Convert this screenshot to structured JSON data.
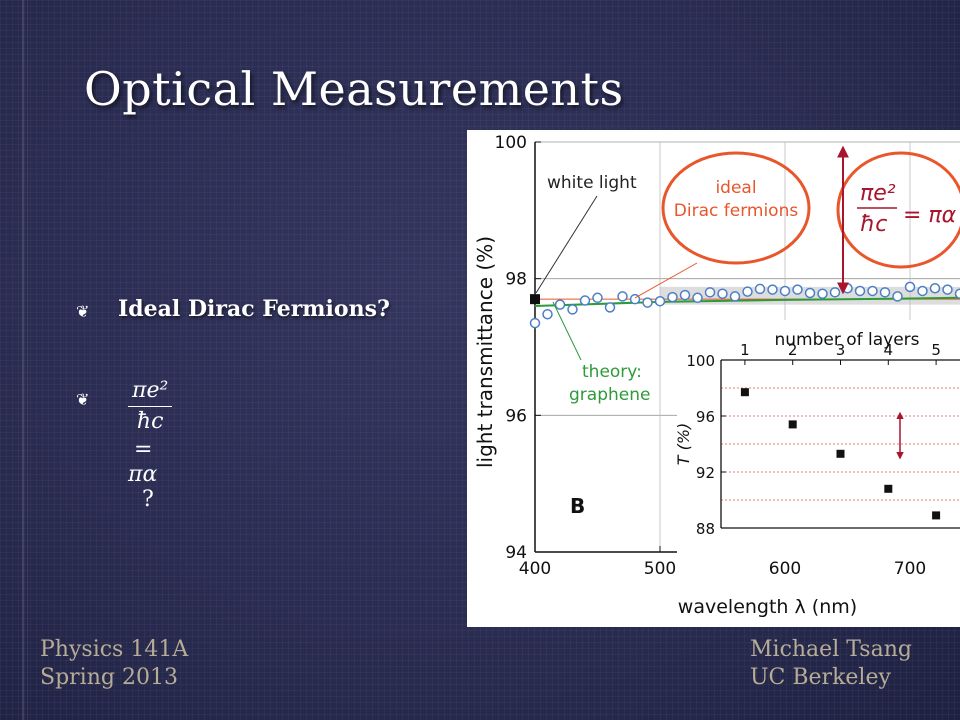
{
  "slide": {
    "title": "Optical Measurements",
    "bullets": [
      {
        "text": "Ideal Dirac Fermions?"
      },
      {
        "formula_num": "πe²",
        "formula_den": "ħc",
        "formula_rhs": "= πα",
        "suffix": "?"
      }
    ],
    "footer_left": [
      "Physics 141A",
      "Spring 2013"
    ],
    "footer_right": [
      "Michael Tsang",
      "UC Berkeley"
    ],
    "bullet_icon": "fleuron-bullet-icon"
  },
  "colors": {
    "background": "#2a2c52",
    "footer_text": "#b7ad96",
    "ellipse_orange": "#e8562a",
    "arrow_red": "#a8152c",
    "theory_green": "#2f9a3a",
    "marker_blue": "#4a7fc6"
  },
  "chart_data": [
    {
      "type": "scatter",
      "panel": "B",
      "xlabel": "wavelength λ (nm)",
      "ylabel": "light transmittance (%)",
      "xlim": [
        400,
        740
      ],
      "ylim": [
        94,
        100
      ],
      "xticks": [
        400,
        500,
        600,
        700
      ],
      "yticks": [
        94,
        96,
        98,
        100
      ],
      "annotations": {
        "white_light": "white light",
        "ideal_line1": "ideal",
        "ideal_line2": "Dirac fermions",
        "theory_line1": "theory:",
        "theory_line2": "graphene",
        "formula_num": "πe²",
        "formula_den": "ħc",
        "formula_rhs": "= πα"
      },
      "series": [
        {
          "marker": "open-circle",
          "x": [
            400,
            410,
            420,
            430,
            440,
            450,
            460,
            470,
            480,
            490,
            500,
            510,
            520,
            530,
            540,
            550,
            560,
            570,
            580,
            590,
            600,
            610,
            620,
            630,
            640,
            650,
            660,
            670,
            680,
            690,
            700,
            710,
            720,
            730,
            740
          ],
          "y": [
            97.35,
            97.48,
            97.62,
            97.55,
            97.68,
            97.72,
            97.58,
            97.74,
            97.7,
            97.65,
            97.67,
            97.73,
            97.76,
            97.72,
            97.8,
            97.78,
            97.74,
            97.81,
            97.85,
            97.84,
            97.82,
            97.84,
            97.79,
            97.78,
            97.8,
            97.86,
            97.82,
            97.82,
            97.8,
            97.74,
            97.88,
            97.82,
            97.86,
            97.84,
            97.78
          ]
        },
        {
          "marker": "filled-square",
          "x": [
            400
          ],
          "y": [
            97.7
          ]
        },
        {
          "line": "theory",
          "x": [
            400,
            500,
            600,
            700,
            740
          ],
          "y": [
            97.6,
            97.66,
            97.69,
            97.71,
            97.72
          ]
        },
        {
          "line": "ideal",
          "x": [
            400,
            740
          ],
          "y": [
            97.7,
            97.7
          ]
        }
      ]
    },
    {
      "type": "scatter",
      "panel": "inset",
      "xlabel": "number of layers",
      "ylabel": "T (%)",
      "xlim": [
        0.5,
        5.5
      ],
      "ylim": [
        88,
        100
      ],
      "xticks": [
        1,
        2,
        3,
        4,
        5
      ],
      "yticks": [
        88,
        92,
        96,
        100
      ],
      "series": [
        {
          "marker": "filled-square",
          "x": [
            1,
            2,
            3,
            4,
            5
          ],
          "y": [
            97.7,
            95.4,
            93.3,
            90.8,
            88.9
          ]
        }
      ]
    }
  ]
}
